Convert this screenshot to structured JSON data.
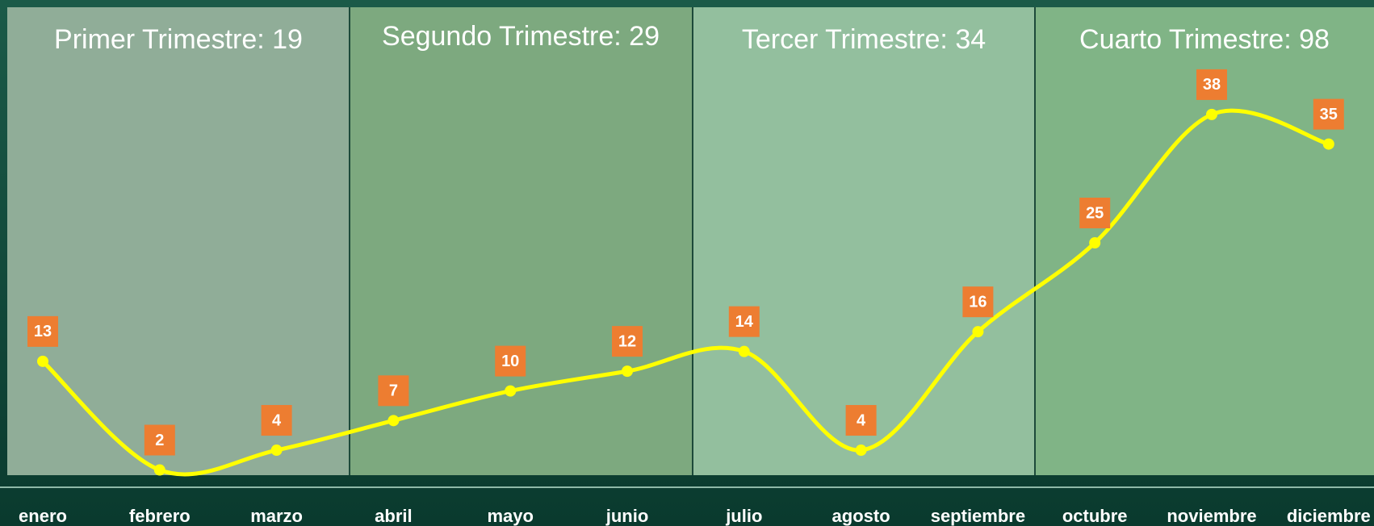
{
  "chart_data": {
    "type": "line",
    "categories": [
      "enero",
      "febrero",
      "marzo",
      "abril",
      "mayo",
      "junio",
      "julio",
      "agosto",
      "septiembre",
      "octubre",
      "noviembre",
      "diciembre"
    ],
    "series": [
      {
        "color": "#ffff00",
        "values": [
          13,
          2,
          4,
          7,
          10,
          12,
          14,
          4,
          16,
          25,
          38,
          35
        ]
      }
    ],
    "annotations": [
      "Primer Trimestre: 19",
      "Segundo Trimestre: 29",
      "Tercer Trimestre: 34",
      "Cuarto Trimestre: 98"
    ]
  }
}
